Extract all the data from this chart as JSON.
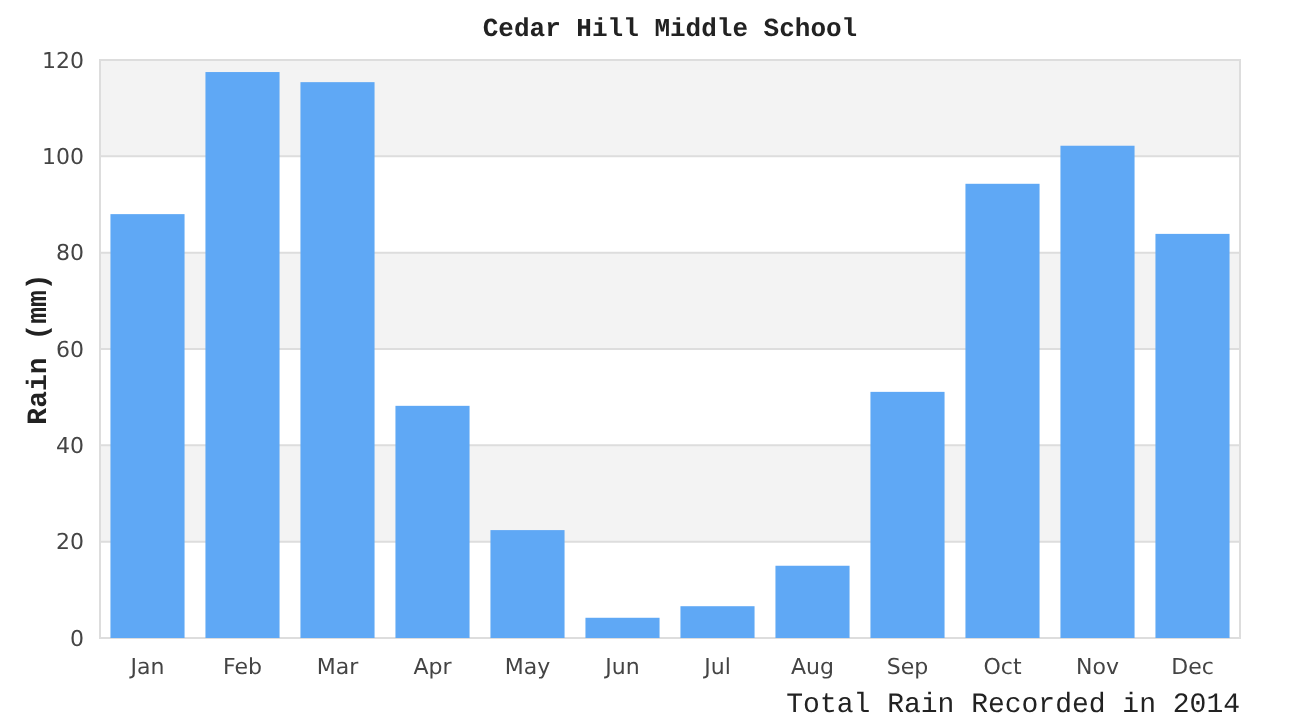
{
  "chart_data": {
    "type": "bar",
    "title": "Cedar Hill Middle School",
    "xlabel": "Total Rain Recorded in 2014",
    "ylabel": "Rain (mm)",
    "categories": [
      "Jan",
      "Feb",
      "Mar",
      "Apr",
      "May",
      "Jun",
      "Jul",
      "Aug",
      "Sep",
      "Oct",
      "Nov",
      "Dec"
    ],
    "values": [
      88,
      117.5,
      115.4,
      48.2,
      22.4,
      4.2,
      6.6,
      15,
      51.1,
      94.3,
      102.2,
      83.9
    ],
    "color": "#5fa8f5",
    "ylim": [
      0,
      120
    ],
    "yticks": [
      0,
      20,
      40,
      60,
      80,
      100,
      120
    ],
    "grid": "y"
  }
}
